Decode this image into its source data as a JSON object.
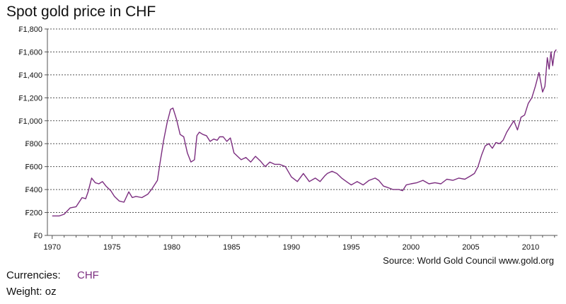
{
  "title": "Spot gold price in CHF",
  "source": "Source: World Gold Council www.gold.org",
  "footer": {
    "currencies_label": "Currencies:",
    "currencies_value": "CHF",
    "weight_label": "Weight:",
    "weight_value": "oz"
  },
  "colors": {
    "line": "#7B2D7F",
    "grid": "#555555",
    "axis": "#555555"
  },
  "chart_data": {
    "type": "line",
    "title": "Spot gold price in CHF",
    "xlabel": "",
    "ylabel": "",
    "xlim": [
      1969.6,
      2012.25
    ],
    "ylim": [
      0,
      1800
    ],
    "x_ticks": [
      1970,
      1975,
      1980,
      1985,
      1990,
      1995,
      2000,
      2005,
      2010
    ],
    "y_ticks": [
      {
        "value": 0,
        "label": "₣0"
      },
      {
        "value": 200,
        "label": "₣200"
      },
      {
        "value": 400,
        "label": "₣400"
      },
      {
        "value": 600,
        "label": "₣600"
      },
      {
        "value": 800,
        "label": "₣800"
      },
      {
        "value": 1000,
        "label": "₣1,000"
      },
      {
        "value": 1200,
        "label": "₣1,200"
      },
      {
        "value": 1400,
        "label": "₣1,400"
      },
      {
        "value": 1600,
        "label": "₣1,600"
      },
      {
        "value": 1800,
        "label": "₣1,800"
      }
    ],
    "grid": "horizontal dashed",
    "legend": "none",
    "series": [
      {
        "name": "CHF",
        "x": [
          1970.0,
          1970.6,
          1971.0,
          1971.5,
          1972.0,
          1972.5,
          1972.8,
          1973.0,
          1973.3,
          1973.6,
          1973.9,
          1974.2,
          1974.5,
          1974.9,
          1975.2,
          1975.6,
          1976.0,
          1976.4,
          1976.7,
          1977.0,
          1977.5,
          1978.0,
          1978.3,
          1978.8,
          1979.0,
          1979.3,
          1979.6,
          1979.9,
          1980.1,
          1980.4,
          1980.7,
          1981.0,
          1981.3,
          1981.6,
          1981.9,
          1982.1,
          1982.3,
          1982.6,
          1982.9,
          1983.2,
          1983.5,
          1983.8,
          1984.0,
          1984.3,
          1984.6,
          1984.9,
          1985.2,
          1985.5,
          1985.8,
          1986.2,
          1986.6,
          1987.0,
          1987.4,
          1987.8,
          1988.2,
          1988.6,
          1989.0,
          1989.5,
          1990.0,
          1990.5,
          1991.0,
          1991.5,
          1992.0,
          1992.4,
          1992.8,
          1993.0,
          1993.4,
          1993.8,
          1994.2,
          1994.6,
          1995.0,
          1995.5,
          1996.0,
          1996.5,
          1997.0,
          1997.3,
          1997.7,
          1998.0,
          1998.5,
          1999.0,
          1999.3,
          1999.6,
          2000.0,
          2000.5,
          2001.0,
          2001.5,
          2002.0,
          2002.5,
          2003.0,
          2003.5,
          2004.0,
          2004.5,
          2005.0,
          2005.3,
          2005.6,
          2005.9,
          2006.2,
          2006.5,
          2006.8,
          2007.1,
          2007.4,
          2007.7,
          2008.0,
          2008.3,
          2008.6,
          2008.9,
          2009.2,
          2009.5,
          2009.8,
          2010.1,
          2010.4,
          2010.7,
          2011.0,
          2011.2,
          2011.4,
          2011.55,
          2011.7,
          2011.85,
          2012.0,
          2012.15
        ],
        "y": [
          170,
          170,
          185,
          240,
          250,
          330,
          320,
          380,
          500,
          460,
          450,
          470,
          430,
          390,
          340,
          300,
          290,
          380,
          330,
          340,
          330,
          360,
          400,
          480,
          620,
          820,
          980,
          1100,
          1110,
          1010,
          880,
          860,
          720,
          640,
          660,
          870,
          900,
          880,
          870,
          820,
          840,
          830,
          860,
          860,
          820,
          850,
          720,
          690,
          660,
          680,
          640,
          690,
          650,
          600,
          640,
          620,
          620,
          600,
          510,
          470,
          540,
          470,
          500,
          470,
          520,
          540,
          560,
          540,
          500,
          470,
          440,
          470,
          440,
          480,
          500,
          480,
          430,
          420,
          400,
          400,
          390,
          440,
          450,
          460,
          480,
          450,
          460,
          450,
          490,
          480,
          500,
          490,
          520,
          540,
          600,
          700,
          780,
          800,
          760,
          810,
          800,
          830,
          900,
          950,
          1000,
          920,
          1030,
          1050,
          1150,
          1200,
          1300,
          1420,
          1250,
          1300,
          1550,
          1450,
          1600,
          1480,
          1600,
          1620
        ]
      }
    ]
  }
}
